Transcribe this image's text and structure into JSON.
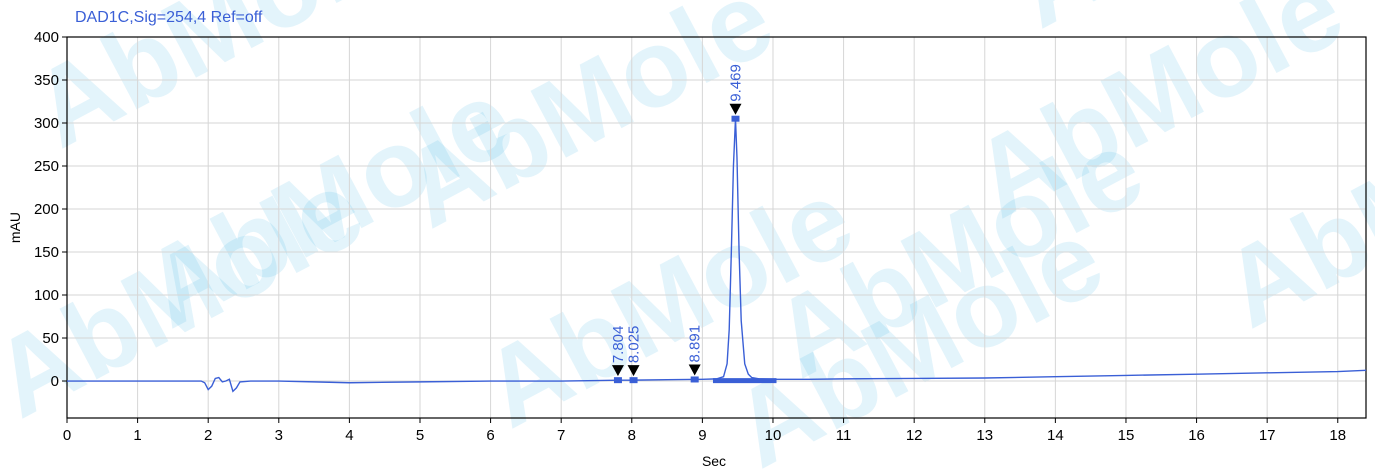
{
  "chart_data": {
    "type": "line",
    "title": "DAD1C,Sig=254,4  Ref=off",
    "xlabel": "Sec",
    "ylabel": "mAU",
    "xlim": [
      0,
      18.4
    ],
    "ylim": [
      -43,
      400
    ],
    "x_ticks": [
      0,
      1,
      2,
      3,
      4,
      5,
      6,
      7,
      8,
      9,
      10,
      11,
      12,
      13,
      14,
      15,
      16,
      17,
      18
    ],
    "y_ticks": [
      0,
      50,
      100,
      150,
      200,
      250,
      300,
      350,
      400
    ],
    "grid": true,
    "series": [
      {
        "color": "#3a5fd6",
        "x": [
          0,
          1.0,
          1.9,
          1.95,
          2.0,
          2.05,
          2.1,
          2.15,
          2.2,
          2.25,
          2.3,
          2.35,
          2.4,
          2.45,
          2.6,
          3.0,
          3.5,
          4.0,
          5.0,
          6.0,
          7.0,
          7.5,
          7.8,
          8.0,
          8.5,
          9.0,
          9.2,
          9.3,
          9.35,
          9.38,
          9.41,
          9.44,
          9.469,
          9.49,
          9.52,
          9.55,
          9.6,
          9.65,
          9.7,
          9.8,
          10.0,
          10.5,
          11.0,
          12.0,
          13.0,
          14.0,
          15.0,
          16.0,
          17.0,
          18.0,
          18.4
        ],
        "y": [
          0,
          0,
          0,
          -2,
          -10,
          -6,
          3,
          4,
          -1,
          0,
          2,
          -12,
          -8,
          -1,
          0,
          0,
          -1,
          -2,
          -1,
          0,
          0,
          0.5,
          1,
          1,
          1.5,
          2,
          2.5,
          5,
          20,
          60,
          150,
          250,
          305,
          260,
          150,
          70,
          20,
          8,
          4,
          2.5,
          2,
          2,
          2.5,
          3,
          3.5,
          5,
          6.5,
          8,
          9.5,
          11,
          12.5
        ]
      }
    ],
    "peaks": [
      {
        "label": "7.804",
        "x": 7.804,
        "y": 1
      },
      {
        "label": "8.025",
        "x": 8.025,
        "y": 1
      },
      {
        "label": "8.891",
        "x": 8.891,
        "y": 1.8
      },
      {
        "label": "9.469",
        "x": 9.469,
        "y": 305
      }
    ],
    "integration_bar": {
      "x_start": 9.15,
      "x_end": 10.05,
      "y": 0.5
    }
  },
  "watermark": {
    "text": "AbMole",
    "color": "#29a8e0",
    "accent_color": "#ffd34d"
  }
}
